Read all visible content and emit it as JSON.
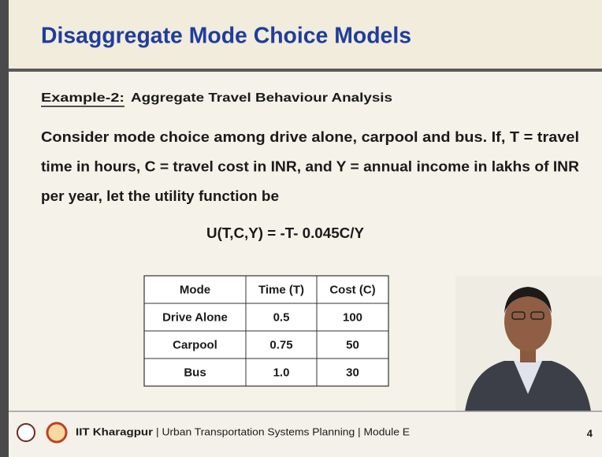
{
  "header": {
    "title": "Disaggregate Mode Choice Models"
  },
  "body": {
    "example_label": "Example-2:",
    "example_title": "Aggregate Travel Behaviour Analysis",
    "paragraph_lines": [
      "Consider mode choice among drive alone, carpool and bus. If, T = travel",
      "time in hours, C = travel cost in INR, and Y = annual income in lakhs of INR",
      "per year, let the utility function be"
    ],
    "formula": "U(T,C,Y) = -T- 0.045C/Y"
  },
  "table": {
    "columns": [
      "Mode",
      "Time (T)",
      "Cost (C)"
    ],
    "rows": [
      [
        "Drive Alone",
        "0.5",
        "100"
      ],
      [
        "Carpool",
        "0.75",
        "50"
      ],
      [
        "Bus",
        "1.0",
        "30"
      ]
    ]
  },
  "footer": {
    "institution": "IIT Kharagpur",
    "course": "| Urban Transportation Systems Planning | Module E",
    "page": "4"
  }
}
